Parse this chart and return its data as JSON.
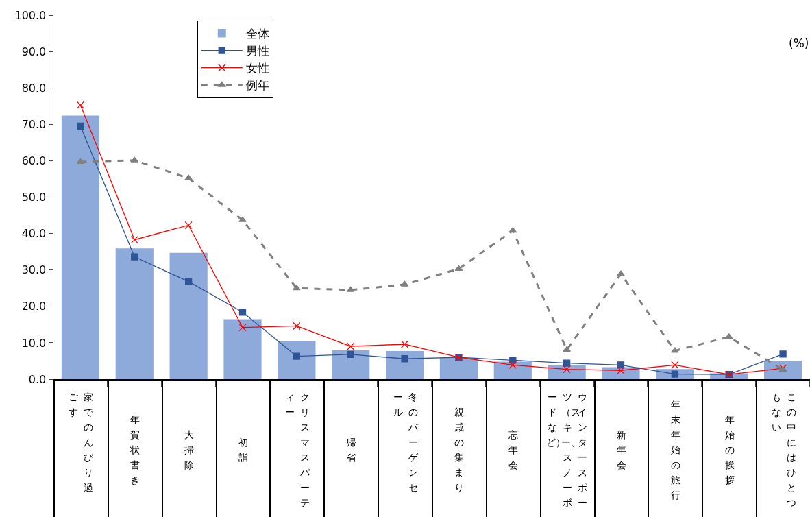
{
  "chart_data": {
    "type": "bar",
    "categories": [
      "家でのんびり過ごす",
      "年賀状書き",
      "大掃除",
      "初詣",
      "クリスマスパーティー",
      "帰省",
      "冬のバーゲンセール",
      "親戚の集まり",
      "忘年会",
      "ウインタースポーツ（スキー、スノーボードなど）",
      "新年会",
      "年末年始の旅行",
      "年始の挨拶",
      "この中にはひとつもない"
    ],
    "series": [
      {
        "name": "全体",
        "type": "bar",
        "color": "#8eaadb",
        "values": [
          72.4,
          35.9,
          34.7,
          16.5,
          10.5,
          7.9,
          7.7,
          5.9,
          4.8,
          3.8,
          3.3,
          2.8,
          1.6,
          5.0
        ]
      },
      {
        "name": "男性",
        "type": "line",
        "color": "#2f5597",
        "marker": "square",
        "line_style": "solid",
        "values": [
          69.5,
          33.6,
          26.8,
          18.4,
          6.3,
          6.8,
          5.6,
          6.0,
          5.2,
          4.4,
          3.9,
          1.4,
          1.3,
          6.9
        ]
      },
      {
        "name": "女性",
        "type": "line",
        "color": "#ff0000",
        "marker": "cross",
        "line_style": "solid",
        "values": [
          75.3,
          38.3,
          42.3,
          14.2,
          14.6,
          9.0,
          9.6,
          6.0,
          3.9,
          2.7,
          2.4,
          3.9,
          1.3,
          3.0
        ]
      },
      {
        "name": "例年",
        "type": "line",
        "color": "#808080",
        "marker": "triangle",
        "line_style": "dashed",
        "values": [
          59.7,
          60.1,
          55.2,
          43.7,
          25.0,
          24.5,
          26.0,
          30.3,
          40.8,
          8.1,
          28.9,
          7.8,
          11.6,
          2.6
        ]
      }
    ],
    "ylim": [
      0,
      100
    ],
    "yticks": [
      {
        "value": 0,
        "label": "0.0"
      },
      {
        "value": 10,
        "label": "10.0"
      },
      {
        "value": 20,
        "label": "20.0"
      },
      {
        "value": 30,
        "label": "30.0"
      },
      {
        "value": 40,
        "label": "40.0"
      },
      {
        "value": 50,
        "label": "50.0"
      },
      {
        "value": 60,
        "label": "60.0"
      },
      {
        "value": 70,
        "label": "70.0"
      },
      {
        "value": 80,
        "label": "80.0"
      },
      {
        "value": 90,
        "label": "90.0"
      },
      {
        "value": 100,
        "label": "100.0"
      }
    ],
    "annotations": [
      "(%)"
    ],
    "grid": false,
    "legend": "top left"
  }
}
